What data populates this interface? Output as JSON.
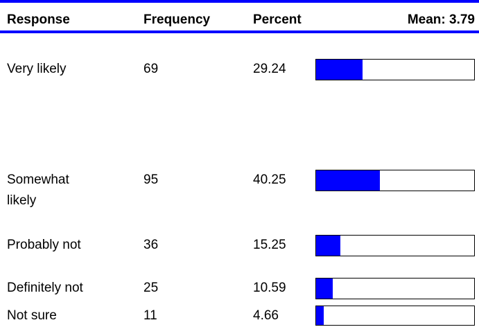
{
  "table": {
    "headers": [
      "Response",
      "Frequency",
      "Percent",
      "Mean: 3.79"
    ],
    "rows": [
      [
        "Very likely",
        69,
        29.24
      ],
      [
        "Somewhat likely",
        95,
        40.25
      ],
      [
        "Probably not",
        36,
        15.25
      ],
      [
        "Definitely not",
        25,
        10.59
      ],
      [
        "Not sure",
        11,
        4.66
      ]
    ]
  }
}
